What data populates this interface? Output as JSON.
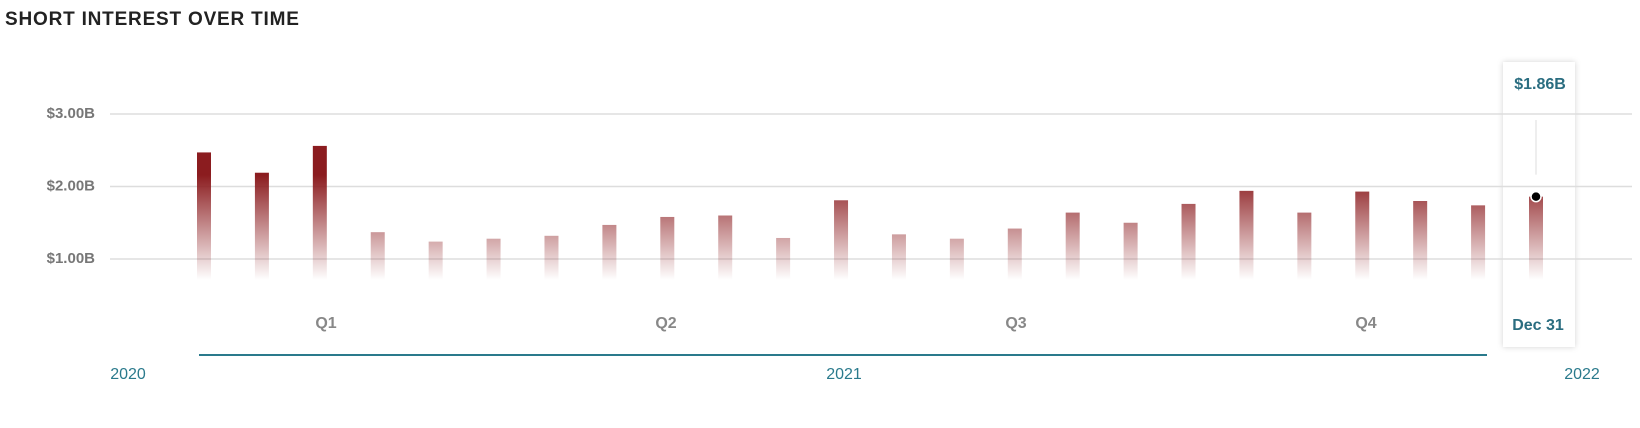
{
  "chart_data": {
    "type": "bar",
    "title": "SHORT INTEREST OVER TIME",
    "categories": [
      null,
      null,
      null,
      null,
      null,
      null,
      null,
      null,
      null,
      null,
      null,
      null,
      null,
      null,
      null,
      null,
      null,
      null,
      null,
      null,
      null,
      null,
      null,
      "Dec 31"
    ],
    "values": [
      2.47,
      2.19,
      2.56,
      1.37,
      1.24,
      1.28,
      1.32,
      1.47,
      1.58,
      1.6,
      1.29,
      1.81,
      1.34,
      1.28,
      1.42,
      1.64,
      1.5,
      1.76,
      1.94,
      1.64,
      1.93,
      1.8,
      1.74,
      1.86
    ],
    "value_labels": [
      null,
      null,
      null,
      null,
      null,
      null,
      null,
      null,
      null,
      null,
      null,
      null,
      null,
      null,
      null,
      null,
      null,
      null,
      null,
      null,
      null,
      null,
      null,
      "$1.86B"
    ],
    "color": "#8b1c1f",
    "ylim": [
      0,
      3.5
    ],
    "yticks": [
      {
        "value": 1,
        "label": "$1.00B"
      },
      {
        "value": 2,
        "label": "$2.00B"
      },
      {
        "value": 3,
        "label": "$3.00B"
      }
    ],
    "grid": true,
    "quarters": [
      "Q1",
      "Q2",
      "Q3",
      "Q4"
    ],
    "years": [
      "2020",
      "2021",
      "2022"
    ]
  }
}
